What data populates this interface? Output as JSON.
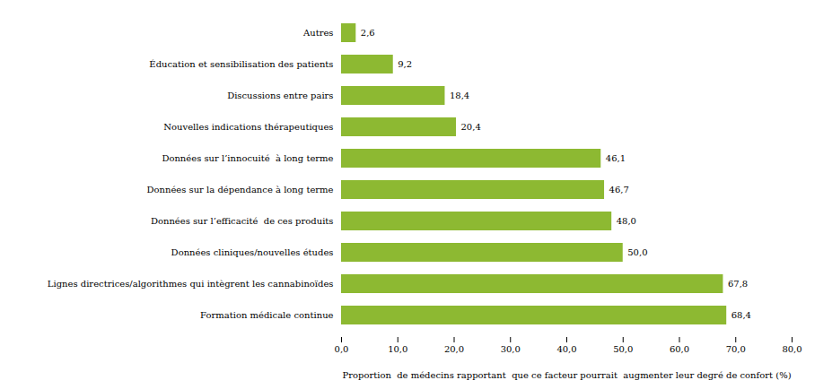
{
  "chart_data": {
    "type": "bar",
    "orientation": "horizontal",
    "categories": [
      "Formation médicale continue",
      "Lignes directrices/algorithmes qui intègrent les cannabinoïdes",
      "Données cliniques/nouvelles études",
      "Données sur l’efficacité  de ces produits",
      "Données sur la dépendance à long terme",
      "Données sur l’innocuité  à long terme",
      "Nouvelles indications thérapeutiques",
      "Discussions entre pairs",
      "Éducation et sensibilisation des patients",
      "Autres"
    ],
    "values": [
      68.4,
      67.8,
      50.0,
      48.0,
      46.7,
      46.1,
      20.4,
      18.4,
      9.2,
      2.6
    ],
    "value_labels": [
      "68,4",
      "67,8",
      "50,0",
      "48,0",
      "46,7",
      "46,1",
      "20,4",
      "18,4",
      "9,2",
      "2,6"
    ],
    "data_labels": true,
    "color": "#8db932",
    "xlabel": "Proportion  de médecins rapportant  que ce facteur pourrait  augmenter leur degré de confort (%)",
    "xlim": [
      0,
      80
    ],
    "xticks": [
      {
        "value": 0.0,
        "label": "0,0"
      },
      {
        "value": 10.0,
        "label": "10,0"
      },
      {
        "value": 20.0,
        "label": "20,0"
      },
      {
        "value": 30.0,
        "label": "30,0"
      },
      {
        "value": 40.0,
        "label": "40,0"
      },
      {
        "value": 50.0,
        "label": "50,0"
      },
      {
        "value": 60.0,
        "label": "60,0"
      },
      {
        "value": 70.0,
        "label": "70,0"
      },
      {
        "value": 80.0,
        "label": "80,0"
      }
    ],
    "grid": false
  }
}
